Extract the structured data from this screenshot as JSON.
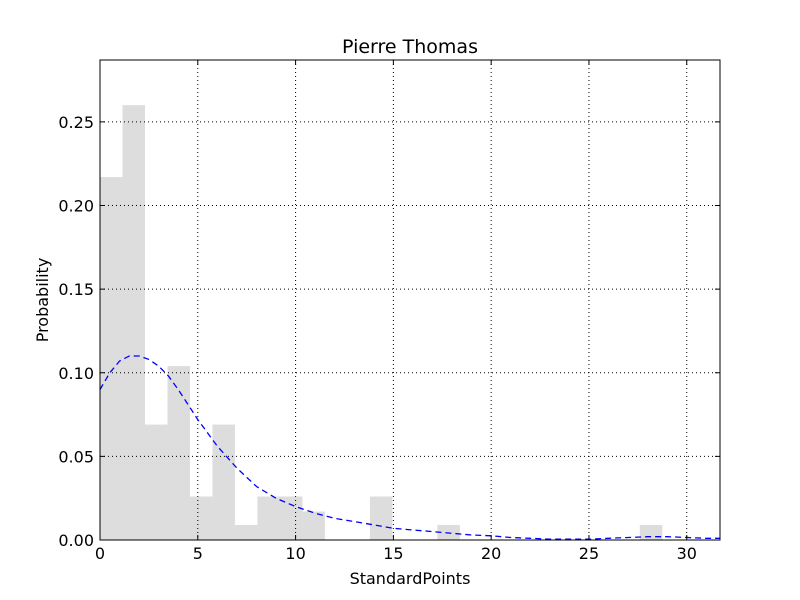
{
  "chart_data": {
    "type": "bar",
    "title": "Pierre Thomas",
    "xlabel": "StandardPoints",
    "ylabel": "Probability",
    "xlim": [
      0,
      31.7
    ],
    "ylim": [
      0,
      0.287
    ],
    "grid": true,
    "x_ticks": [
      "0",
      "5",
      "10",
      "15",
      "20",
      "25",
      "30"
    ],
    "x_tick_values": [
      0,
      5,
      10,
      15,
      20,
      25,
      30
    ],
    "y_ticks": [
      "0.00",
      "0.05",
      "0.10",
      "0.15",
      "0.20",
      "0.25"
    ],
    "y_tick_values": [
      0,
      0.05,
      0.1,
      0.15,
      0.2,
      0.25
    ],
    "bin_edges": [
      0,
      1.15,
      2.3,
      3.45,
      4.6,
      5.75,
      6.9,
      8.05,
      9.2,
      10.35,
      11.5,
      12.65,
      13.8,
      14.95,
      16.1,
      17.25,
      18.4,
      19.55,
      20.7,
      21.85,
      23.0,
      24.15,
      25.3,
      26.45,
      27.6,
      28.75
    ],
    "values": [
      0.217,
      0.26,
      0.069,
      0.104,
      0.026,
      0.069,
      0.009,
      0.026,
      0.026,
      0.017,
      0,
      0,
      0.026,
      0,
      0,
      0.009,
      0,
      0,
      0,
      0,
      0,
      0,
      0,
      0,
      0.009
    ],
    "bar_color": "#dddddd",
    "fit_curve": {
      "style": "dashed",
      "color": "#0000ff",
      "x": [
        0,
        0.5,
        1,
        1.5,
        2,
        2.5,
        3,
        3.5,
        4,
        4.5,
        5,
        6,
        7,
        8,
        9,
        10,
        11,
        12,
        13,
        14,
        15,
        16,
        17,
        18,
        19,
        20,
        21,
        22,
        23,
        24,
        25,
        26,
        27,
        28,
        29,
        30,
        31,
        31.7
      ],
      "y": [
        0.09,
        0.1,
        0.107,
        0.11,
        0.11,
        0.108,
        0.104,
        0.098,
        0.09,
        0.081,
        0.072,
        0.056,
        0.043,
        0.032,
        0.025,
        0.02,
        0.016,
        0.013,
        0.011,
        0.009,
        0.007,
        0.006,
        0.005,
        0.004,
        0.003,
        0.0025,
        0.0015,
        0.001,
        0.0005,
        0.0005,
        0.0005,
        0.001,
        0.0015,
        0.002,
        0.002,
        0.0015,
        0.001,
        0.001
      ]
    }
  }
}
